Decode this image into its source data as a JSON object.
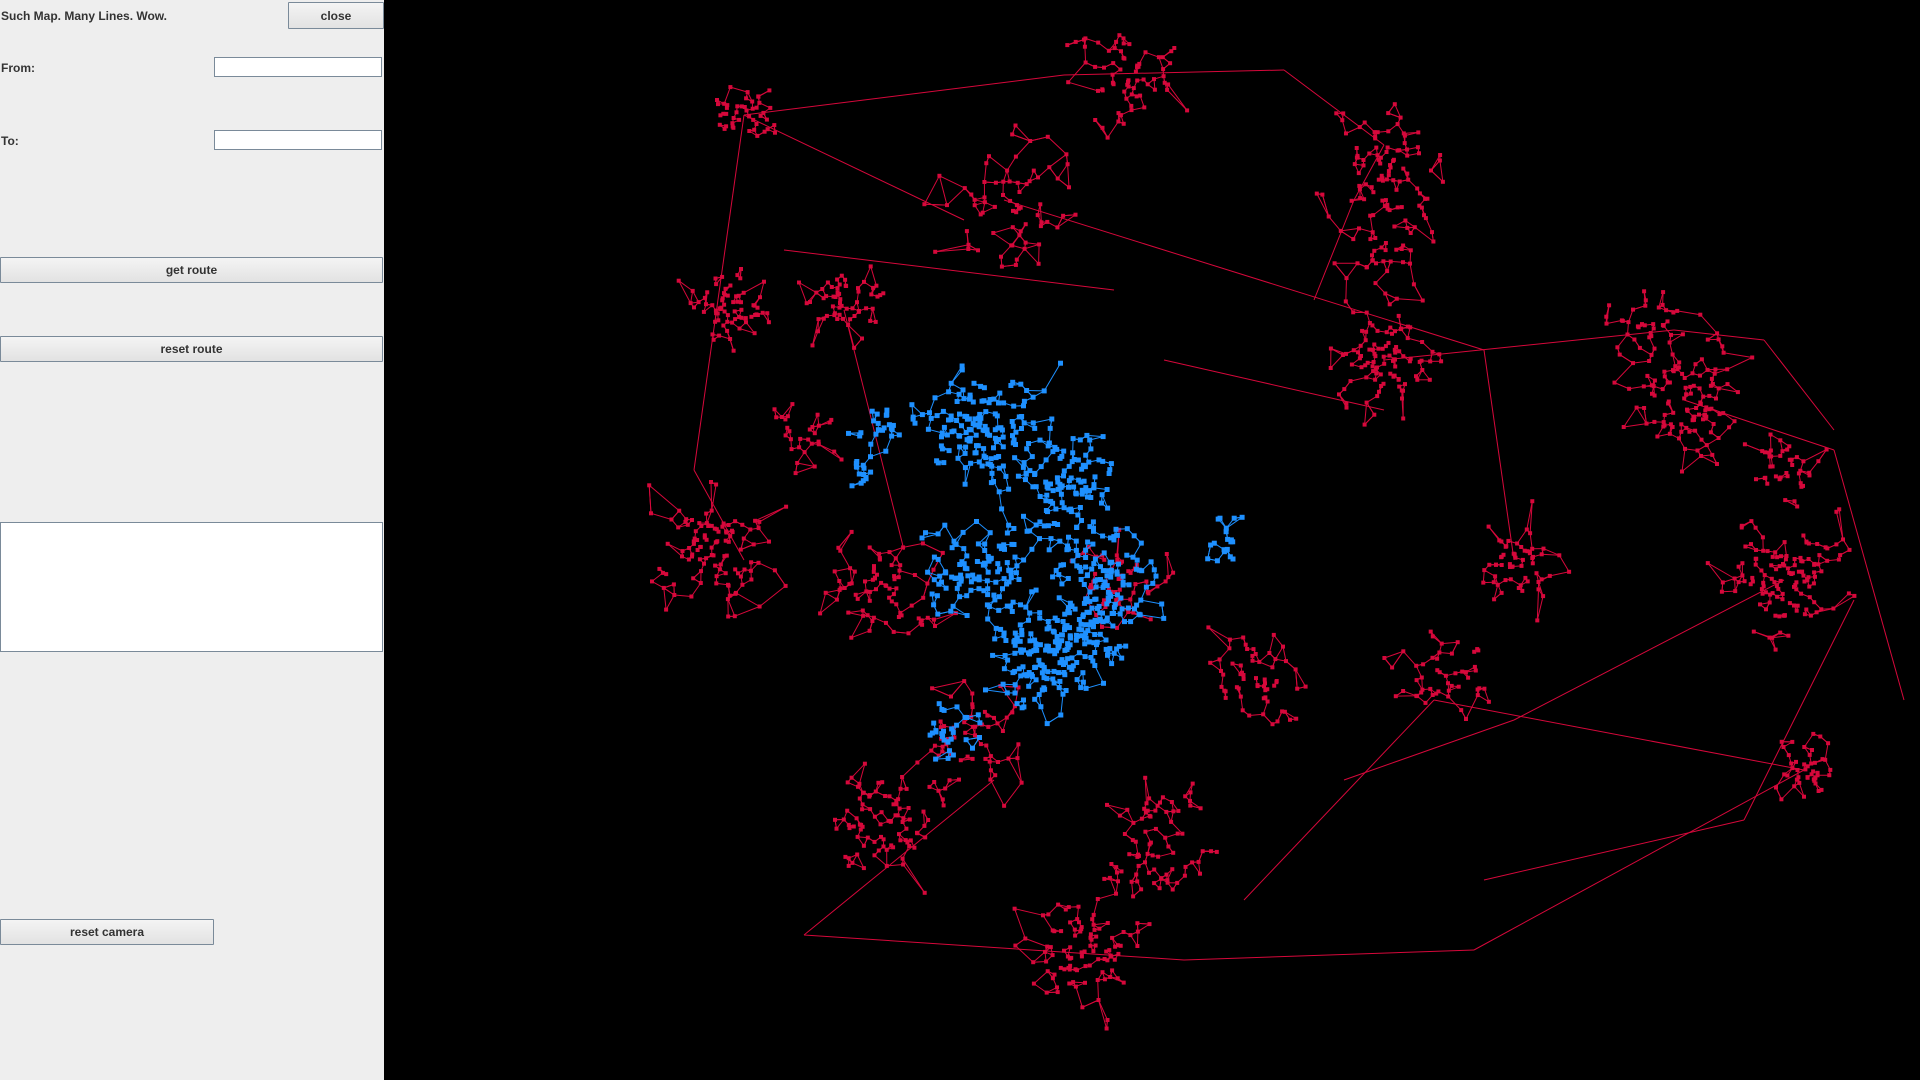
{
  "window": {
    "title": "Such Map. Many Lines. Wow."
  },
  "controls": {
    "close_label": "close",
    "from_label": "From:",
    "from_value": "",
    "to_label": "To:",
    "to_value": "",
    "get_route_label": "get route",
    "reset_route_label": "reset route",
    "output_text": "",
    "reset_camera_label": "reset camera"
  },
  "map": {
    "background_color": "#000000",
    "network_color": "#d6083b",
    "route_region_color": "#1e90ff"
  }
}
